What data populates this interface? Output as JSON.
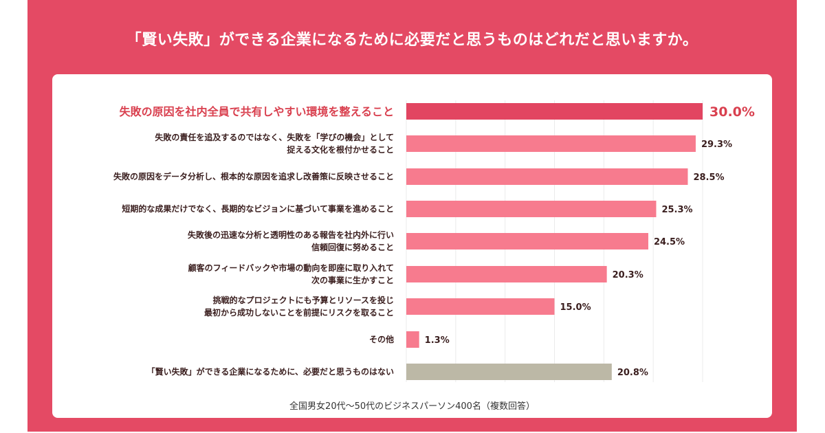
{
  "title": "「賢い失敗」ができる企業になるために必要だと思うものはどれだと思いますか。",
  "footnote": "全国男女20代〜50代のビジネスパーソン400名（複数回答）",
  "colors": {
    "background": "#e44a64",
    "card": "#ffffff",
    "highlight_bar": "#e24561",
    "bar": "#f77b8e",
    "none_bar": "#bcb8a6",
    "highlight_text": "#d9404f",
    "label_text": "#3a1e1e"
  },
  "chart_data": {
    "type": "bar",
    "orientation": "horizontal",
    "unit": "%",
    "xlim": [
      0,
      30
    ],
    "grid": true,
    "categories": [
      [
        "失敗の原因を社内全員で共有しやすい環境を整えること"
      ],
      [
        "失敗の責任を追及するのではなく、失敗を「学びの機会」として",
        "捉える文化を根付かせること"
      ],
      [
        "失敗の原因をデータ分析し、根本的な原因を追求し改善策に反映させること"
      ],
      [
        "短期的な成果だけでなく、長期的なビジョンに基づいて事業を進めること"
      ],
      [
        "失敗後の迅速な分析と透明性のある報告を社内外に行い",
        "信頼回復に努めること"
      ],
      [
        "顧客のフィードバックや市場の動向を即座に取り入れて",
        "次の事業に生かすこと"
      ],
      [
        "挑戦的なプロジェクトにも予算とリソースを投じ",
        "最初から成功しないことを前提にリスクを取ること"
      ],
      [
        "その他"
      ],
      [
        "「賢い失敗」ができる企業になるために、必要だと思うものはない"
      ]
    ],
    "values": [
      30.0,
      29.3,
      28.5,
      25.3,
      24.5,
      20.3,
      15.0,
      1.3,
      20.8
    ],
    "value_labels": [
      "30.0%",
      "29.3%",
      "28.5%",
      "25.3%",
      "24.5%",
      "20.3%",
      "15.0%",
      "1.3%",
      "20.8%"
    ],
    "highlight_index": 0,
    "none_index": 8
  }
}
